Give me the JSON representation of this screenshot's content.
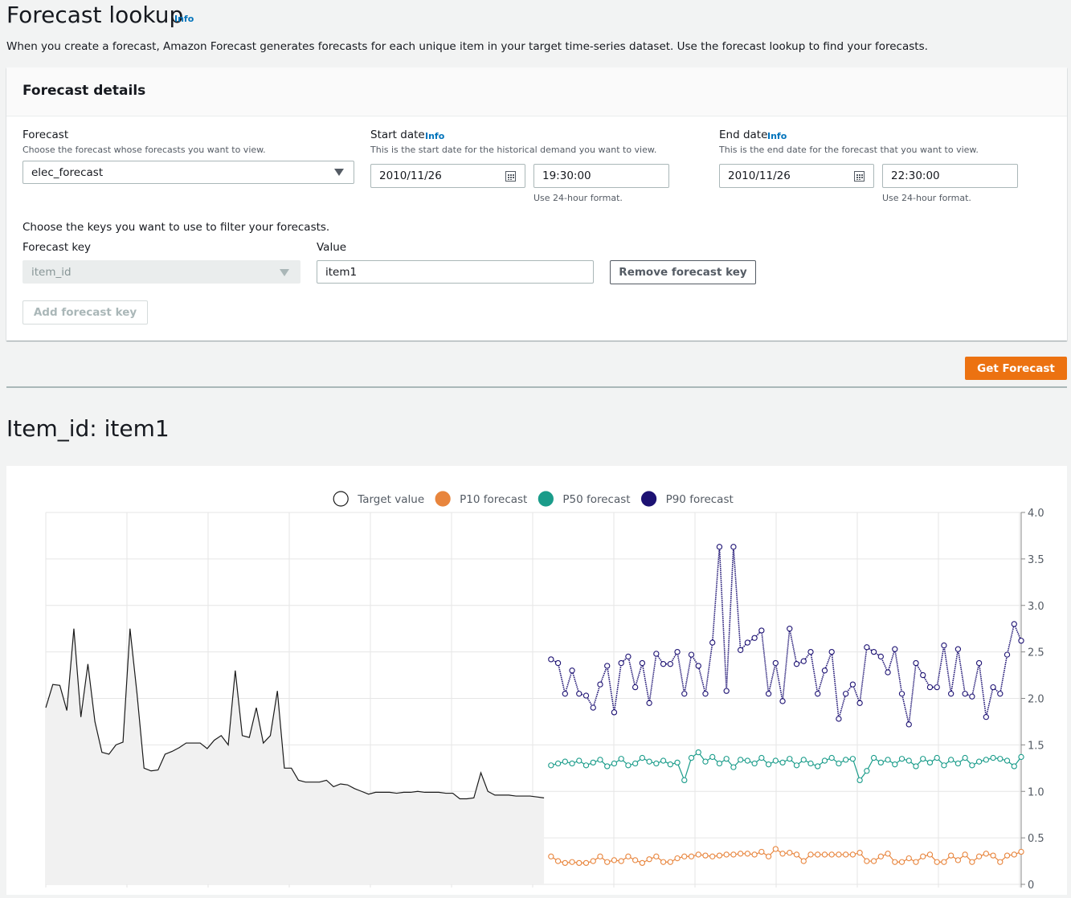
{
  "header": {
    "title": "Forecast lookup",
    "info": "Info",
    "description": "When you create a forecast, Amazon Forecast generates forecasts for each unique item in your target time-series dataset. Use the forecast lookup to find your forecasts."
  },
  "details": {
    "title": "Forecast details",
    "forecast": {
      "label": "Forecast",
      "hint": "Choose the forecast whose forecasts you want to view.",
      "value": "elec_forecast"
    },
    "start": {
      "label": "Start date",
      "info": "Info",
      "hint": "This is the start date for the historical demand you want to view.",
      "date": "2010/11/26",
      "time": "19:30:00",
      "time_hint": "Use 24-hour format."
    },
    "end": {
      "label": "End date",
      "info": "Info",
      "hint": "This is the end date for the forecast that you want to view.",
      "date": "2010/11/26",
      "time": "22:30:00",
      "time_hint": "Use 24-hour format."
    },
    "filter_prompt": "Choose the keys you want to use to filter your forecasts.",
    "key": {
      "label": "Forecast key",
      "value": "item_id"
    },
    "value": {
      "label": "Value",
      "value": "item1"
    },
    "remove_button": "Remove forecast key",
    "add_button": "Add forecast key"
  },
  "get_button": "Get Forecast",
  "result_title": "Item_id: item1",
  "chart_data": {
    "type": "line",
    "ylim": [
      0,
      4
    ],
    "yticks": [
      0,
      0.5,
      {
        "value": 1,
        "label": "1.0"
      },
      1.5,
      {
        "value": 2,
        "label": "2.0"
      },
      2.5,
      {
        "value": 3,
        "label": "3.0"
      },
      3.5,
      {
        "value": 4,
        "label": "4.0"
      }
    ],
    "grid": true,
    "legend": "top",
    "series": [
      {
        "name": "Target value",
        "color": "#1a1a1a",
        "values": [
          1.9,
          2.15,
          2.14,
          1.87,
          2.75,
          1.8,
          2.37,
          1.75,
          1.42,
          1.4,
          1.5,
          1.53,
          2.75,
          2.05,
          1.25,
          1.22,
          1.23,
          1.4,
          1.43,
          1.47,
          1.52,
          1.52,
          1.52,
          1.46,
          1.55,
          1.6,
          1.5,
          2.3,
          1.6,
          1.58,
          1.9,
          1.52,
          1.6,
          2.08,
          1.25,
          1.25,
          1.12,
          1.1,
          1.1,
          1.1,
          1.12,
          1.05,
          1.08,
          1.07,
          1.03,
          1.0,
          0.97,
          0.99,
          0.99,
          0.99,
          0.98,
          0.99,
          0.99,
          1.0,
          0.99,
          0.99,
          0.99,
          0.98,
          0.98,
          0.92,
          0.92,
          0.93,
          1.2,
          1.0,
          0.96,
          0.96,
          0.96,
          0.95,
          0.95,
          0.95,
          0.94,
          0.93,
          null,
          null,
          null,
          null,
          null,
          null,
          null,
          null,
          null,
          null,
          null,
          null,
          null,
          null,
          null,
          null,
          null,
          null,
          null,
          null,
          null,
          null,
          null,
          null,
          null,
          null,
          null,
          null,
          null,
          null,
          null,
          null,
          null,
          null,
          null,
          null,
          null,
          null,
          null,
          null,
          null,
          null,
          null,
          null,
          null,
          null,
          null,
          null,
          null,
          null,
          null,
          null,
          null,
          null,
          null,
          null,
          null,
          null,
          null,
          null,
          null,
          null,
          null,
          null,
          null,
          null,
          null,
          null
        ]
      },
      {
        "name": "P10 forecast",
        "color": "#e8853d",
        "values": [
          null,
          null,
          null,
          null,
          null,
          null,
          null,
          null,
          null,
          null,
          null,
          null,
          null,
          null,
          null,
          null,
          null,
          null,
          null,
          null,
          null,
          null,
          null,
          null,
          null,
          null,
          null,
          null,
          null,
          null,
          null,
          null,
          null,
          null,
          null,
          null,
          null,
          null,
          null,
          null,
          null,
          null,
          null,
          null,
          null,
          null,
          null,
          null,
          null,
          null,
          null,
          null,
          null,
          null,
          null,
          null,
          null,
          null,
          null,
          null,
          null,
          null,
          null,
          null,
          null,
          null,
          null,
          null,
          null,
          null,
          null,
          null,
          0.3,
          0.25,
          0.23,
          0.24,
          0.23,
          0.23,
          0.25,
          0.3,
          0.24,
          0.26,
          0.25,
          0.3,
          0.26,
          0.23,
          0.27,
          0.3,
          0.24,
          0.24,
          0.28,
          0.3,
          0.3,
          0.32,
          0.31,
          0.3,
          0.31,
          0.32,
          0.32,
          0.33,
          0.33,
          0.32,
          0.35,
          0.3,
          0.38,
          0.33,
          0.34,
          0.32,
          0.25,
          0.32,
          0.32,
          0.32,
          0.32,
          0.32,
          0.32,
          0.32,
          0.34,
          0.25,
          0.25,
          0.3,
          0.33,
          0.24,
          0.24,
          0.28,
          0.24,
          0.3,
          0.32,
          0.24,
          0.24,
          0.31,
          0.26,
          0.32,
          0.24,
          0.3,
          0.33,
          0.31,
          0.24,
          0.31,
          0.32,
          0.35
        ]
      },
      {
        "name": "P50 forecast",
        "color": "#1a9c8a",
        "values": [
          null,
          null,
          null,
          null,
          null,
          null,
          null,
          null,
          null,
          null,
          null,
          null,
          null,
          null,
          null,
          null,
          null,
          null,
          null,
          null,
          null,
          null,
          null,
          null,
          null,
          null,
          null,
          null,
          null,
          null,
          null,
          null,
          null,
          null,
          null,
          null,
          null,
          null,
          null,
          null,
          null,
          null,
          null,
          null,
          null,
          null,
          null,
          null,
          null,
          null,
          null,
          null,
          null,
          null,
          null,
          null,
          null,
          null,
          null,
          null,
          null,
          null,
          null,
          null,
          null,
          null,
          null,
          null,
          null,
          null,
          null,
          null,
          1.28,
          1.3,
          1.32,
          1.3,
          1.33,
          1.28,
          1.31,
          1.34,
          1.27,
          1.3,
          1.35,
          1.28,
          1.3,
          1.36,
          1.32,
          1.3,
          1.33,
          1.29,
          1.31,
          1.12,
          1.36,
          1.42,
          1.32,
          1.37,
          1.3,
          1.35,
          1.26,
          1.34,
          1.33,
          1.3,
          1.36,
          1.29,
          1.33,
          1.31,
          1.35,
          1.28,
          1.34,
          1.3,
          1.27,
          1.33,
          1.36,
          1.3,
          1.34,
          1.35,
          1.12,
          1.22,
          1.36,
          1.31,
          1.34,
          1.29,
          1.35,
          1.33,
          1.27,
          1.35,
          1.31,
          1.36,
          1.28,
          1.34,
          1.3,
          1.36,
          1.28,
          1.32,
          1.34,
          1.36,
          1.35,
          1.33,
          1.27,
          1.37
        ]
      },
      {
        "name": "P90 forecast",
        "color": "#1d1273",
        "values": [
          null,
          null,
          null,
          null,
          null,
          null,
          null,
          null,
          null,
          null,
          null,
          null,
          null,
          null,
          null,
          null,
          null,
          null,
          null,
          null,
          null,
          null,
          null,
          null,
          null,
          null,
          null,
          null,
          null,
          null,
          null,
          null,
          null,
          null,
          null,
          null,
          null,
          null,
          null,
          null,
          null,
          null,
          null,
          null,
          null,
          null,
          null,
          null,
          null,
          null,
          null,
          null,
          null,
          null,
          null,
          null,
          null,
          null,
          null,
          null,
          null,
          null,
          null,
          null,
          null,
          null,
          null,
          null,
          null,
          null,
          null,
          null,
          2.42,
          2.38,
          2.05,
          2.3,
          2.05,
          2.03,
          1.9,
          2.15,
          2.35,
          1.85,
          2.38,
          2.45,
          2.12,
          2.38,
          1.95,
          2.48,
          2.37,
          2.37,
          2.5,
          2.05,
          2.47,
          2.35,
          2.05,
          2.6,
          3.63,
          2.08,
          3.63,
          2.52,
          2.6,
          2.65,
          2.73,
          2.05,
          2.38,
          1.97,
          2.75,
          2.37,
          2.4,
          2.5,
          2.05,
          2.3,
          2.5,
          1.78,
          2.05,
          2.15,
          1.95,
          2.55,
          2.5,
          2.45,
          2.28,
          2.53,
          2.05,
          1.72,
          2.38,
          2.25,
          2.12,
          2.12,
          2.57,
          2.05,
          2.53,
          2.05,
          2.02,
          2.38,
          1.8,
          2.12,
          2.05,
          2.47,
          2.8,
          2.62
        ]
      }
    ]
  }
}
